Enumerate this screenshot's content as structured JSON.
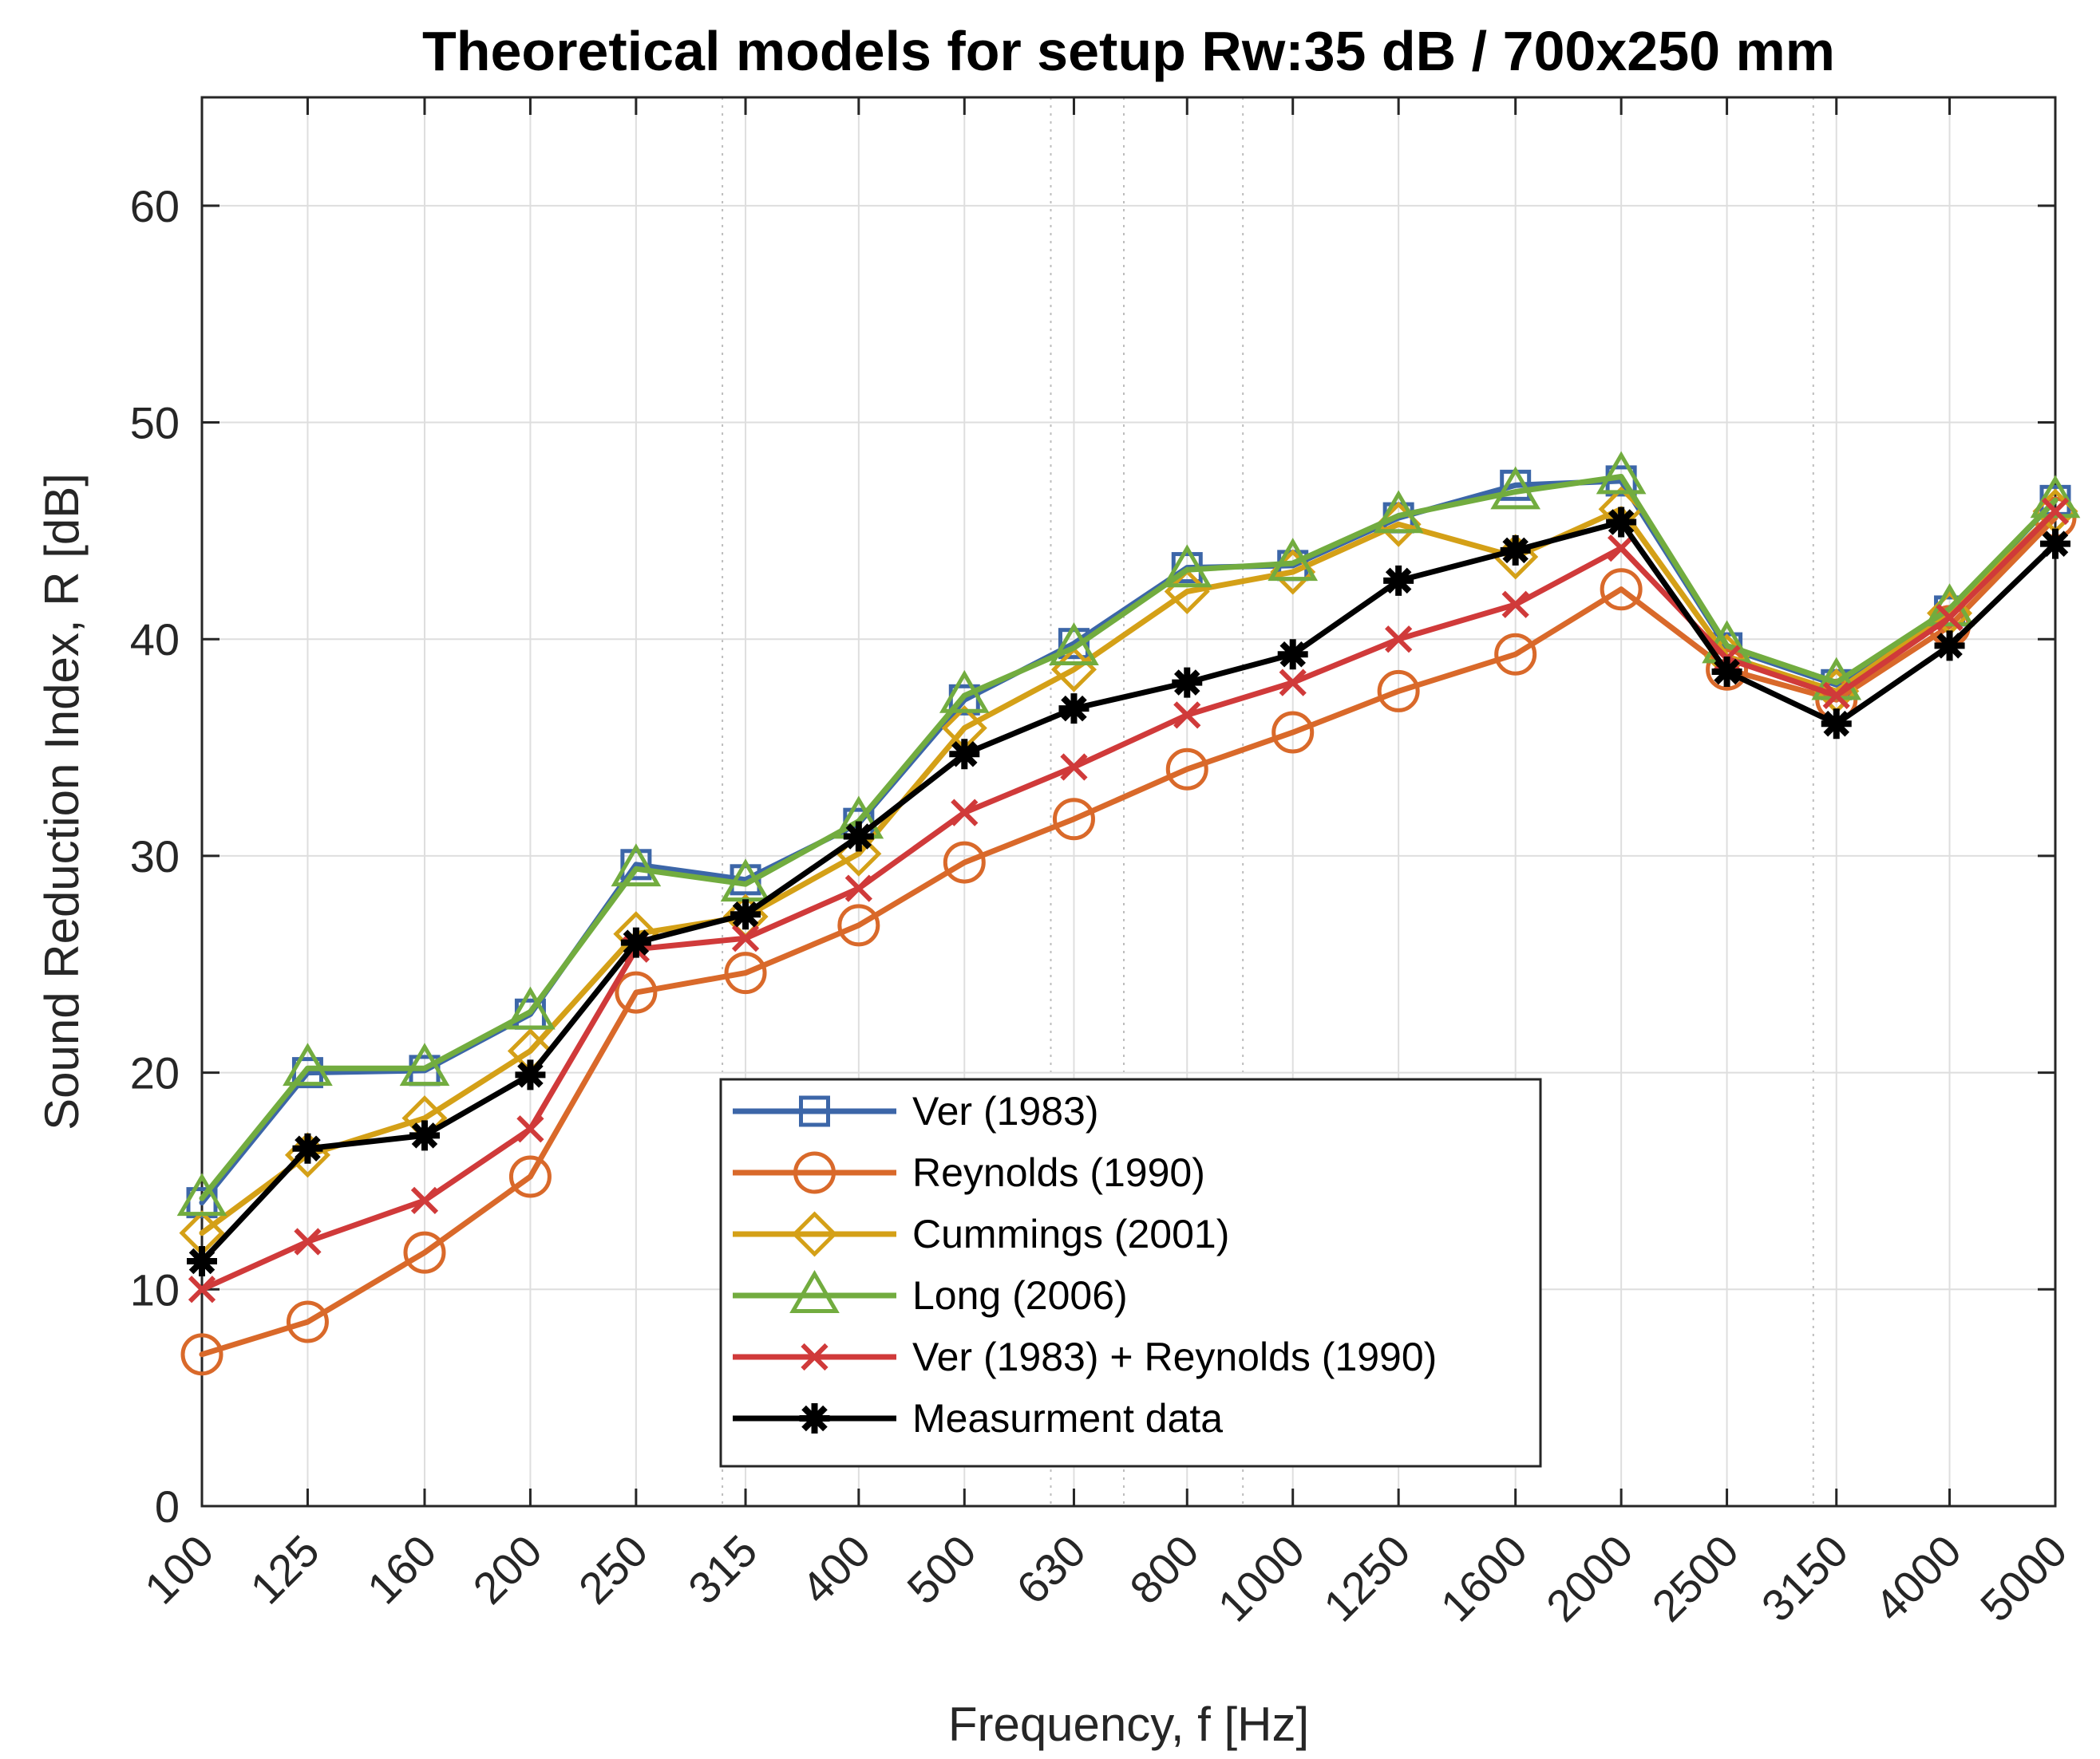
{
  "chart_data": {
    "type": "line",
    "title": "Theoretical models for setup Rw:35 dB / 700x250 mm",
    "xlabel": "Frequency, f [Hz]",
    "ylabel": "Sound Reduction Index, R [dB]",
    "ylim": [
      0,
      65
    ],
    "yticks": [
      "0",
      "10",
      "20",
      "30",
      "40",
      "50",
      "60"
    ],
    "categories": [
      "100",
      "125",
      "160",
      "200",
      "250",
      "315",
      "400",
      "500",
      "630",
      "800",
      "1000",
      "1250",
      "1600",
      "2000",
      "2500",
      "3150",
      "4000",
      "5000"
    ],
    "grid": true,
    "legend_position": "lower-center",
    "series": [
      {
        "name": "Ver (1983)",
        "color": "#3c66a8",
        "marker": "square",
        "values": [
          14.0,
          20.0,
          20.1,
          22.7,
          29.6,
          28.9,
          31.5,
          37.2,
          39.8,
          43.3,
          43.4,
          45.6,
          47.1,
          47.3,
          39.6,
          37.9,
          41.3,
          46.4
        ]
      },
      {
        "name": "Reynolds (1990)",
        "color": "#d9692a",
        "marker": "circle",
        "values": [
          7.0,
          8.5,
          11.7,
          15.2,
          23.7,
          24.6,
          26.8,
          29.7,
          31.7,
          34.0,
          35.7,
          37.6,
          39.3,
          42.3,
          38.6,
          37.2,
          40.6,
          45.6
        ]
      },
      {
        "name": "Cummings (2001)",
        "color": "#d4a017",
        "marker": "diamond",
        "values": [
          12.6,
          16.2,
          17.9,
          21.0,
          26.4,
          27.2,
          30.1,
          35.9,
          38.6,
          42.2,
          43.1,
          45.3,
          43.8,
          46.0,
          39.2,
          37.6,
          41.2,
          45.9
        ]
      },
      {
        "name": "Long (2006)",
        "color": "#72ac3f",
        "marker": "triangle",
        "values": [
          14.2,
          20.2,
          20.2,
          22.8,
          29.4,
          28.7,
          31.6,
          37.4,
          39.6,
          43.2,
          43.5,
          45.7,
          46.8,
          47.5,
          39.7,
          38.0,
          41.4,
          46.4
        ]
      },
      {
        "name": "Ver (1983) + Reynolds (1990)",
        "color": "#d03a3a",
        "marker": "x",
        "values": [
          10.0,
          12.2,
          14.1,
          17.4,
          25.7,
          26.2,
          28.5,
          32.0,
          34.1,
          36.5,
          38.0,
          40.0,
          41.6,
          44.2,
          39.1,
          37.4,
          41.0,
          45.9
        ]
      },
      {
        "name": "Measurment data",
        "color": "#000000",
        "marker": "asterisk",
        "values": [
          11.3,
          16.5,
          17.1,
          19.9,
          26.0,
          27.3,
          30.9,
          34.7,
          36.8,
          38.0,
          39.3,
          42.7,
          44.1,
          45.4,
          38.5,
          36.1,
          39.7,
          44.4
        ]
      }
    ]
  }
}
